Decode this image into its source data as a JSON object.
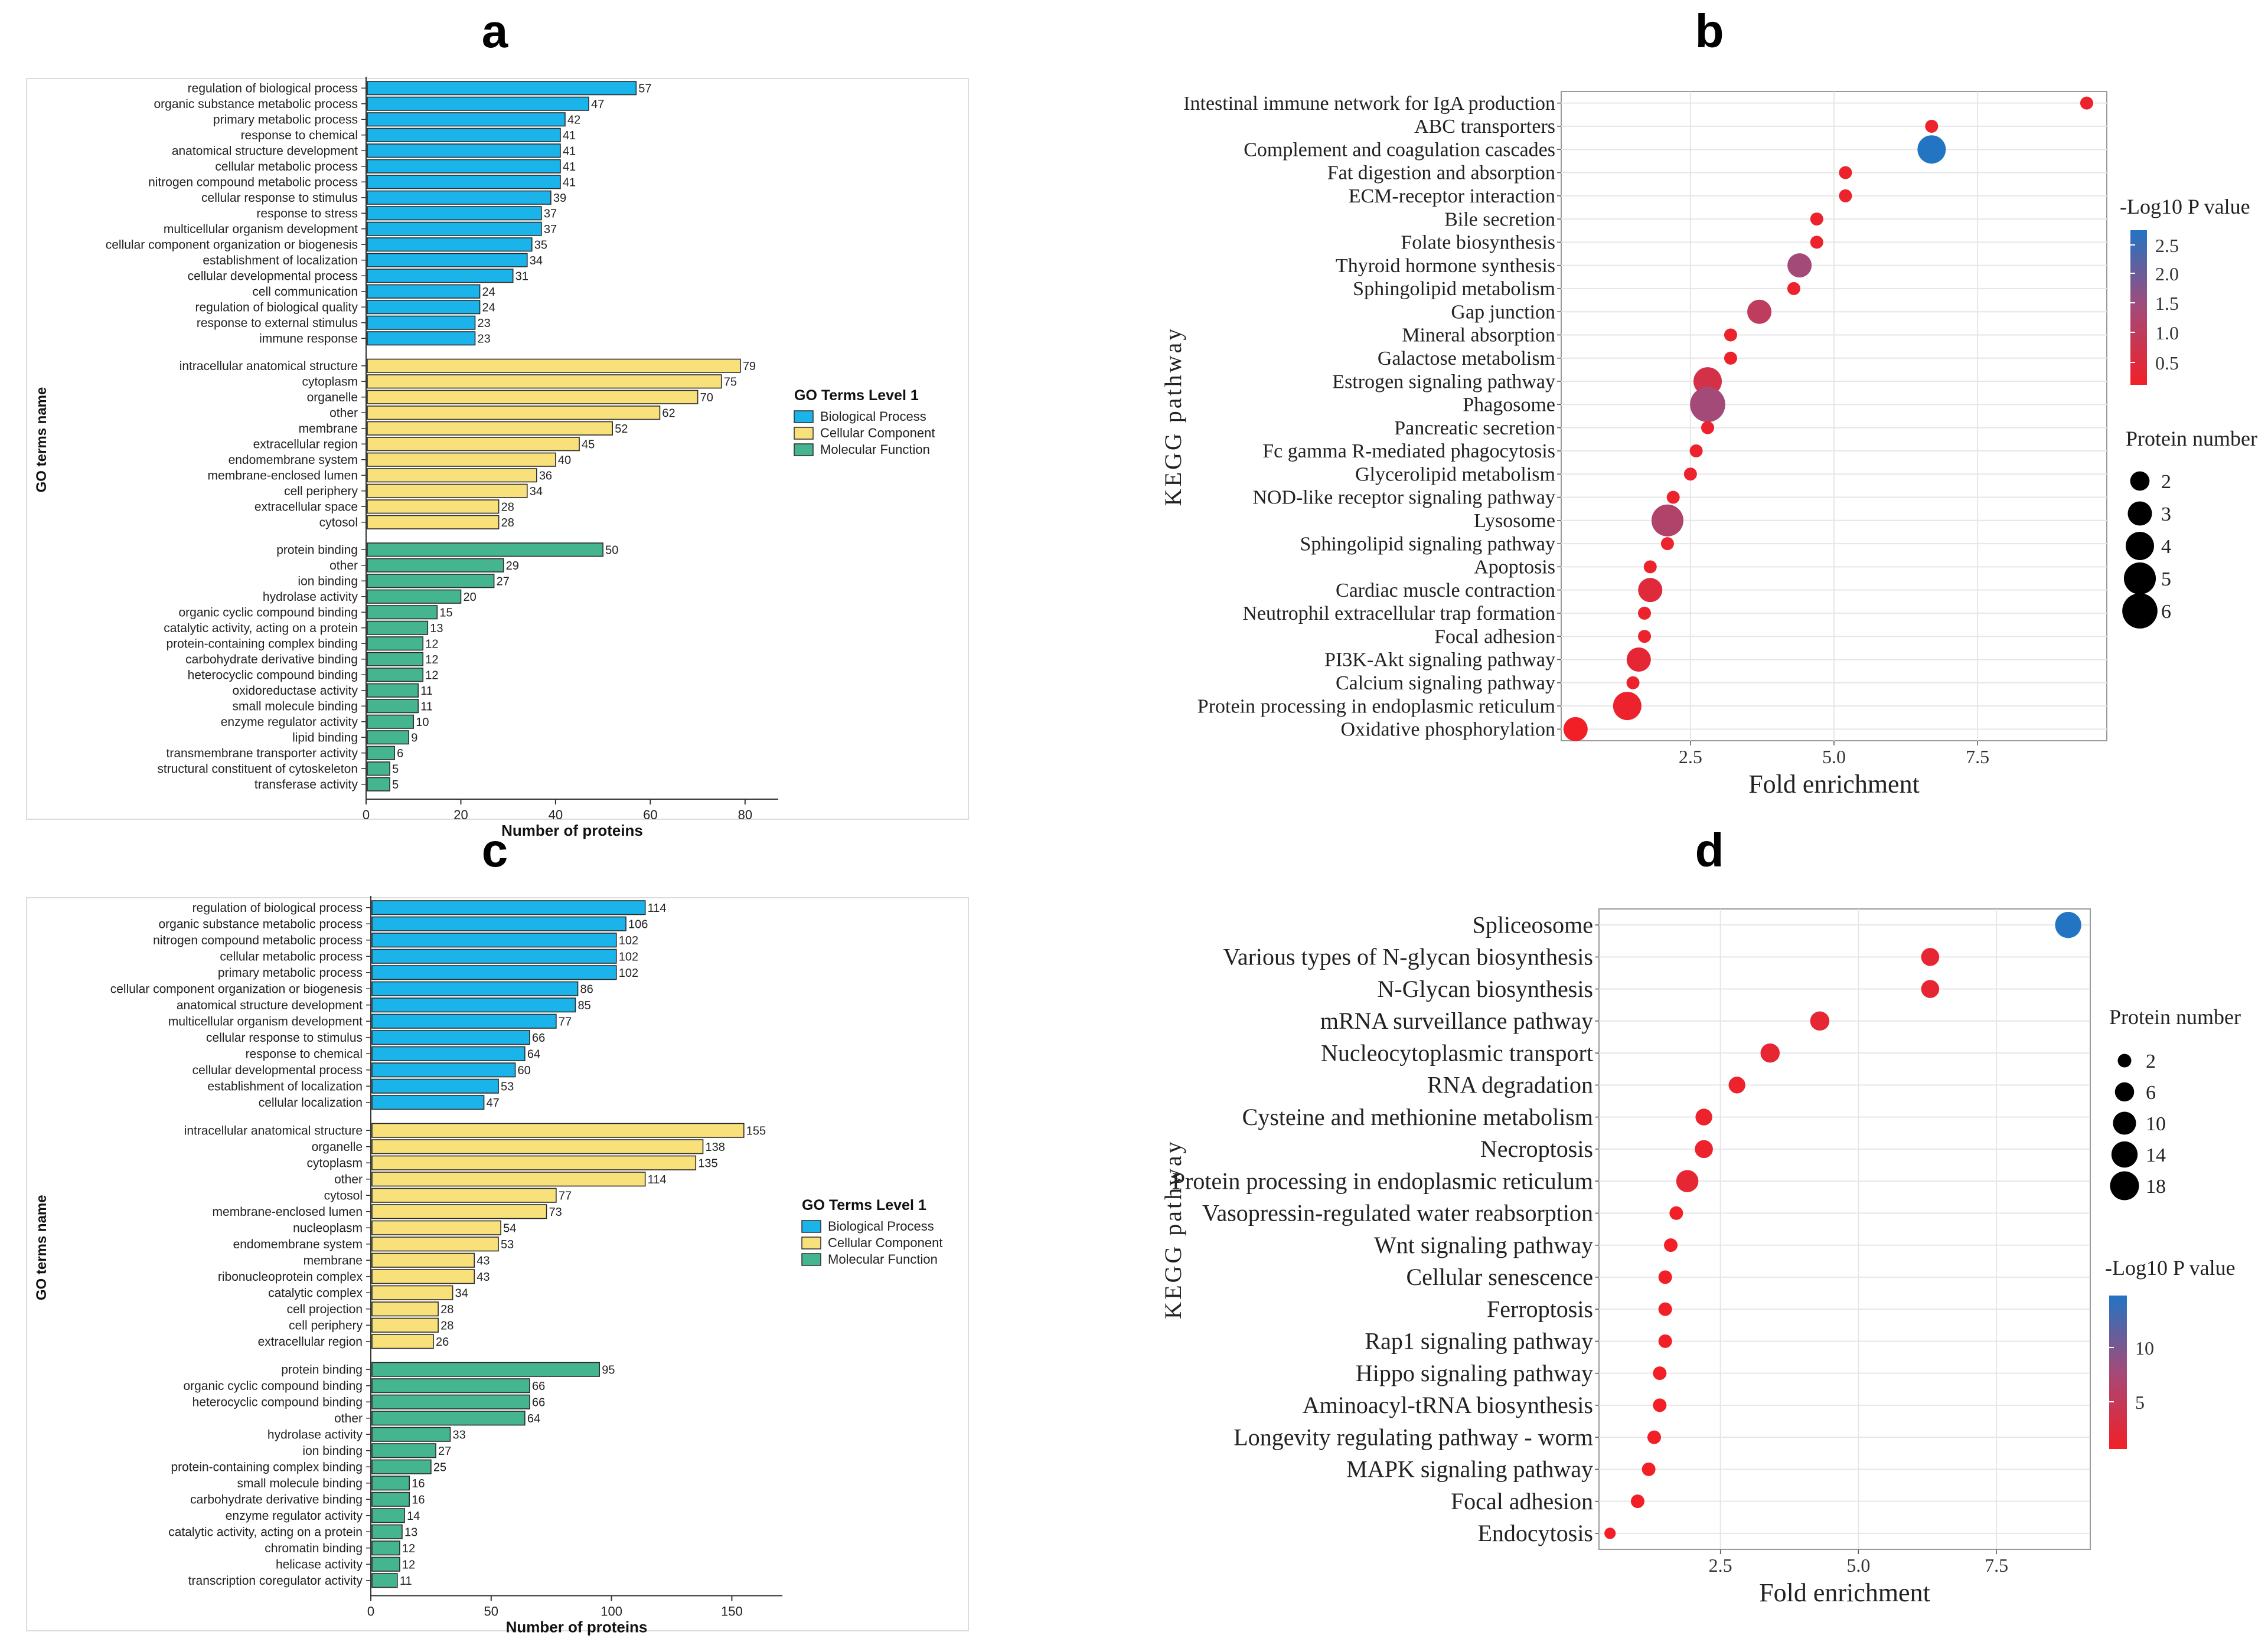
{
  "colors": {
    "bp": "#1BB4EA",
    "cc": "#F8E17A",
    "mf": "#45B58F",
    "low_p": "#F21F26",
    "mid_p": "#A44A78",
    "high_p": "#2374C3"
  },
  "panels": {
    "a": "a",
    "b": "b",
    "c": "c",
    "d": "d"
  },
  "chart_data": [
    {
      "id": "a",
      "type": "bar",
      "orientation": "horizontal",
      "xlabel": "Number of proteins",
      "ylabel": "GO terms name",
      "xlim": [
        0,
        87
      ],
      "xticks": [
        0,
        20,
        40,
        60,
        80
      ],
      "legend_title": "GO Terms Level 1",
      "legend": [
        "Biological Process",
        "Cellular Component",
        "Molecular Function"
      ],
      "groups": [
        {
          "name": "Biological Process",
          "color_key": "bp",
          "categories": [
            "regulation of biological process",
            "organic substance metabolic process",
            "primary metabolic process",
            "response to chemical",
            "anatomical structure development",
            "cellular metabolic process",
            "nitrogen compound metabolic process",
            "cellular response to stimulus",
            "response to stress",
            "multicellular organism development",
            "cellular component organization or biogenesis",
            "establishment of localization",
            "cellular developmental process",
            "cell communication",
            "regulation of biological quality",
            "response to external stimulus",
            "immune response"
          ],
          "values": [
            57,
            47,
            42,
            41,
            41,
            41,
            41,
            39,
            37,
            37,
            35,
            34,
            31,
            24,
            24,
            23,
            23
          ]
        },
        {
          "name": "Cellular Component",
          "color_key": "cc",
          "categories": [
            "intracellular anatomical structure",
            "cytoplasm",
            "organelle",
            "other",
            "membrane",
            "extracellular region",
            "endomembrane system",
            "membrane-enclosed lumen",
            "cell periphery",
            "extracellular space",
            "cytosol"
          ],
          "values": [
            79,
            75,
            70,
            62,
            52,
            45,
            40,
            36,
            34,
            28,
            28
          ]
        },
        {
          "name": "Molecular Function",
          "color_key": "mf",
          "categories": [
            "protein binding",
            "other",
            "ion binding",
            "hydrolase activity",
            "organic cyclic compound binding",
            "catalytic activity, acting on a protein",
            "protein-containing complex binding",
            "carbohydrate derivative binding",
            "heterocyclic compound binding",
            "oxidoreductase activity",
            "small molecule binding",
            "enzyme regulator activity",
            "lipid binding",
            "transmembrane transporter activity",
            "structural constituent of cytoskeleton",
            "transferase activity"
          ],
          "values": [
            50,
            29,
            27,
            20,
            15,
            13,
            12,
            12,
            12,
            11,
            11,
            10,
            9,
            6,
            5,
            5
          ]
        }
      ]
    },
    {
      "id": "b",
      "type": "scatter",
      "xlabel": "Fold enrichment",
      "ylabel": "KEGG pathway",
      "xlim": [
        0.25,
        9.75
      ],
      "xticks": [
        2.5,
        5.0,
        7.5
      ],
      "xtick_labels": [
        "2.5",
        "5.0",
        "7.5"
      ],
      "color_title": "-Log10 P value",
      "color_ticks": [
        "2.5",
        "2.0",
        "1.5",
        "1.0",
        "0.5"
      ],
      "color_range": [
        0.3,
        2.7
      ],
      "size_title": "Protein number",
      "size_ticks": [
        2,
        3,
        4,
        5,
        6
      ],
      "points": [
        {
          "pathway": "Intestinal immune network for IgA production",
          "x": 9.4,
          "count": 1,
          "p": 0.4
        },
        {
          "pathway": "ABC transporters",
          "x": 6.7,
          "count": 1,
          "p": 0.4
        },
        {
          "pathway": "Complement and coagulation cascades",
          "x": 6.7,
          "count": 4,
          "p": 2.7
        },
        {
          "pathway": "Fat digestion and absorption",
          "x": 5.2,
          "count": 1,
          "p": 0.4
        },
        {
          "pathway": "ECM-receptor interaction",
          "x": 5.2,
          "count": 1,
          "p": 0.4
        },
        {
          "pathway": "Bile secretion",
          "x": 4.7,
          "count": 1,
          "p": 0.4
        },
        {
          "pathway": "Folate biosynthesis",
          "x": 4.7,
          "count": 1,
          "p": 0.4
        },
        {
          "pathway": "Thyroid hormone synthesis",
          "x": 4.4,
          "count": 3,
          "p": 1.5
        },
        {
          "pathway": "Sphingolipid metabolism",
          "x": 4.3,
          "count": 1,
          "p": 0.4
        },
        {
          "pathway": "Gap junction",
          "x": 3.7,
          "count": 3,
          "p": 1.1
        },
        {
          "pathway": "Mineral absorption",
          "x": 3.2,
          "count": 1,
          "p": 0.4
        },
        {
          "pathway": "Galactose metabolism",
          "x": 3.2,
          "count": 1,
          "p": 0.4
        },
        {
          "pathway": "Estrogen signaling pathway",
          "x": 2.8,
          "count": 4,
          "p": 0.8
        },
        {
          "pathway": "Phagosome",
          "x": 2.8,
          "count": 6,
          "p": 1.5
        },
        {
          "pathway": "Pancreatic secretion",
          "x": 2.8,
          "count": 1,
          "p": 0.4
        },
        {
          "pathway": "Fc gamma R-mediated phagocytosis",
          "x": 2.6,
          "count": 1,
          "p": 0.4
        },
        {
          "pathway": "Glycerolipid metabolism",
          "x": 2.5,
          "count": 1,
          "p": 0.4
        },
        {
          "pathway": "NOD-like receptor signaling pathway",
          "x": 2.2,
          "count": 1,
          "p": 0.4
        },
        {
          "pathway": "Lysosome",
          "x": 2.1,
          "count": 5,
          "p": 1.3
        },
        {
          "pathway": "Sphingolipid signaling pathway",
          "x": 2.1,
          "count": 1,
          "p": 0.4
        },
        {
          "pathway": "Apoptosis",
          "x": 1.8,
          "count": 1,
          "p": 0.4
        },
        {
          "pathway": "Cardiac muscle contraction",
          "x": 1.8,
          "count": 3,
          "p": 0.6
        },
        {
          "pathway": "Neutrophil extracellular trap formation",
          "x": 1.7,
          "count": 1,
          "p": 0.4
        },
        {
          "pathway": "Focal adhesion",
          "x": 1.7,
          "count": 1,
          "p": 0.4
        },
        {
          "pathway": "PI3K-Akt signaling pathway",
          "x": 1.6,
          "count": 3,
          "p": 0.5
        },
        {
          "pathway": "Calcium signaling pathway",
          "x": 1.5,
          "count": 1,
          "p": 0.4
        },
        {
          "pathway": "Protein processing in endoplasmic reticulum",
          "x": 1.4,
          "count": 4,
          "p": 0.4
        },
        {
          "pathway": "Oxidative phosphorylation",
          "x": 0.5,
          "count": 3,
          "p": 0.3
        }
      ]
    },
    {
      "id": "c",
      "type": "bar",
      "orientation": "horizontal",
      "xlabel": "Number of proteins",
      "ylabel": "GO terms name",
      "xlim": [
        0,
        171
      ],
      "xticks": [
        0,
        50,
        100,
        150
      ],
      "legend_title": "GO Terms Level 1",
      "legend": [
        "Biological Process",
        "Cellular Component",
        "Molecular Function"
      ],
      "groups": [
        {
          "name": "Biological Process",
          "color_key": "bp",
          "categories": [
            "regulation of biological process",
            "organic substance metabolic process",
            "nitrogen compound metabolic process",
            "cellular metabolic process",
            "primary metabolic process",
            "cellular component organization or biogenesis",
            "anatomical structure development",
            "multicellular organism development",
            "cellular response to stimulus",
            "response to chemical",
            "cellular developmental process",
            "establishment of localization",
            "cellular localization"
          ],
          "values": [
            114,
            106,
            102,
            102,
            102,
            86,
            85,
            77,
            66,
            64,
            60,
            53,
            47
          ]
        },
        {
          "name": "Cellular Component",
          "color_key": "cc",
          "categories": [
            "intracellular anatomical structure",
            "organelle",
            "cytoplasm",
            "other",
            "cytosol",
            "membrane-enclosed lumen",
            "nucleoplasm",
            "endomembrane system",
            "membrane",
            "ribonucleoprotein complex",
            "catalytic complex",
            "cell projection",
            "cell periphery",
            "extracellular region"
          ],
          "values": [
            155,
            138,
            135,
            114,
            77,
            73,
            54,
            53,
            43,
            43,
            34,
            28,
            28,
            26
          ]
        },
        {
          "name": "Molecular Function",
          "color_key": "mf",
          "categories": [
            "protein binding",
            "organic cyclic compound binding",
            "heterocyclic compound binding",
            "other",
            "hydrolase activity",
            "ion binding",
            "protein-containing complex binding",
            "small molecule binding",
            "carbohydrate derivative binding",
            "enzyme regulator activity",
            "catalytic activity, acting on a protein",
            "chromatin binding",
            "helicase activity",
            "transcription coregulator activity"
          ],
          "values": [
            95,
            66,
            66,
            64,
            33,
            27,
            25,
            16,
            16,
            14,
            13,
            12,
            12,
            11
          ]
        }
      ]
    },
    {
      "id": "d",
      "type": "scatter",
      "xlabel": "Fold enrichment",
      "ylabel": "KEGG pathway",
      "xlim": [
        0.3,
        9.2
      ],
      "xticks": [
        2.5,
        5.0,
        7.5
      ],
      "xtick_labels": [
        "2.5",
        "5.0",
        "7.5"
      ],
      "color_title": "-Log10 P value",
      "color_ticks": [
        "10",
        "5"
      ],
      "color_range": [
        1,
        14
      ],
      "size_title": "Protein number",
      "size_ticks": [
        2,
        6,
        10,
        14,
        18
      ],
      "points": [
        {
          "pathway": "Spliceosome",
          "x": 8.8,
          "count": 14,
          "p": 14
        },
        {
          "pathway": "Various types of N-glycan biosynthesis",
          "x": 6.3,
          "count": 5,
          "p": 2
        },
        {
          "pathway": "N-Glycan biosynthesis",
          "x": 6.3,
          "count": 5,
          "p": 2
        },
        {
          "pathway": "mRNA surveillance pathway",
          "x": 4.3,
          "count": 6,
          "p": 2
        },
        {
          "pathway": "Nucleocytoplasmic transport",
          "x": 3.4,
          "count": 6,
          "p": 2
        },
        {
          "pathway": "RNA degradation",
          "x": 2.8,
          "count": 4,
          "p": 1.5
        },
        {
          "pathway": "Cysteine and methionine metabolism",
          "x": 2.2,
          "count": 4,
          "p": 1.5
        },
        {
          "pathway": "Necroptosis",
          "x": 2.2,
          "count": 5,
          "p": 1.5
        },
        {
          "pathway": "Protein processing in endoplasmic reticulum",
          "x": 1.9,
          "count": 9,
          "p": 2
        },
        {
          "pathway": "Vasopressin-regulated water reabsorption",
          "x": 1.7,
          "count": 2,
          "p": 1
        },
        {
          "pathway": "Wnt signaling pathway",
          "x": 1.6,
          "count": 2,
          "p": 1
        },
        {
          "pathway": "Cellular senescence",
          "x": 1.5,
          "count": 2,
          "p": 1
        },
        {
          "pathway": "Ferroptosis",
          "x": 1.5,
          "count": 2,
          "p": 1
        },
        {
          "pathway": "Rap1 signaling pathway",
          "x": 1.5,
          "count": 2,
          "p": 1
        },
        {
          "pathway": "Hippo signaling pathway",
          "x": 1.4,
          "count": 2,
          "p": 1
        },
        {
          "pathway": "Aminoacyl-tRNA biosynthesis",
          "x": 1.4,
          "count": 2,
          "p": 1
        },
        {
          "pathway": "Longevity regulating pathway - worm",
          "x": 1.3,
          "count": 2,
          "p": 1
        },
        {
          "pathway": "MAPK signaling pathway",
          "x": 1.2,
          "count": 2,
          "p": 1
        },
        {
          "pathway": "Focal adhesion",
          "x": 1.0,
          "count": 2,
          "p": 1
        },
        {
          "pathway": "Endocytosis",
          "x": 0.5,
          "count": 1,
          "p": 1
        }
      ]
    }
  ]
}
